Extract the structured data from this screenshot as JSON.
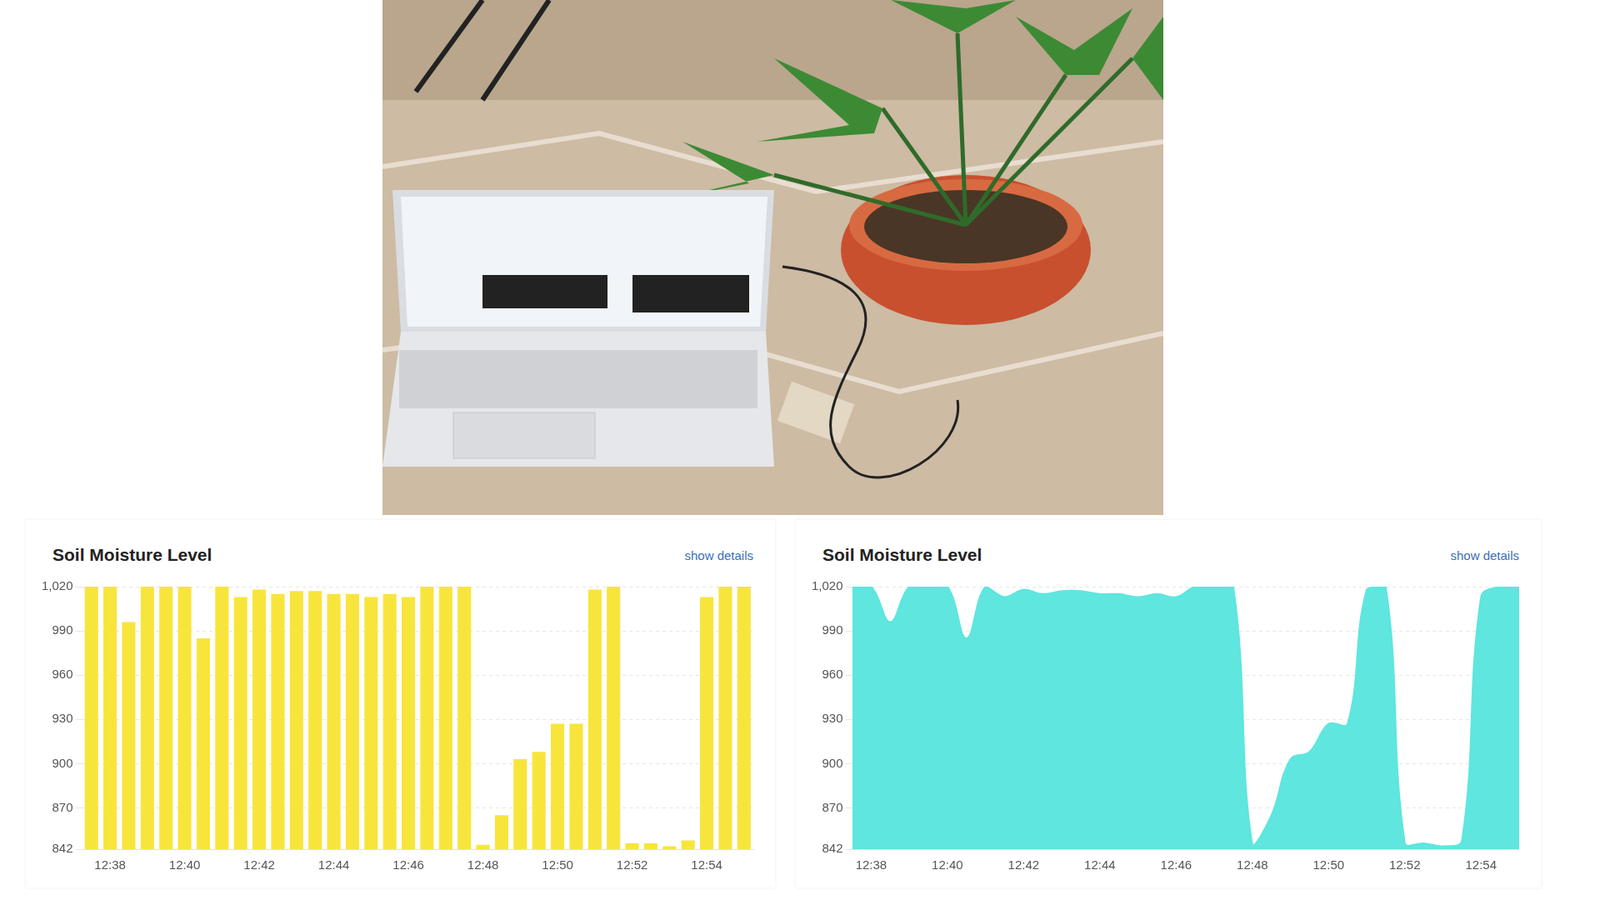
{
  "chart_data": [
    {
      "type": "bar",
      "title": "Soil Moisture Level",
      "annotation": "show details",
      "categories": [
        null,
        "12:38",
        null,
        null,
        null,
        "12:40",
        null,
        null,
        null,
        "12:42",
        null,
        null,
        null,
        "12:44",
        null,
        null,
        null,
        "12:46",
        null,
        null,
        null,
        "12:48",
        null,
        null,
        null,
        "12:50",
        null,
        null,
        null,
        "12:52",
        null,
        null,
        null,
        "12:54",
        null,
        null
      ],
      "values": [
        1020,
        1020,
        996,
        1020,
        1020,
        1020,
        985,
        1020,
        1013,
        1018,
        1015,
        1017,
        1017,
        1015,
        1015,
        1013,
        1015,
        1013,
        1020,
        1020,
        1020,
        845,
        865,
        903,
        908,
        927,
        927,
        1018,
        1020,
        846,
        846,
        844,
        848,
        1013,
        1020,
        1020
      ],
      "color": "#f8e53c",
      "ylim": [
        842,
        1020
      ],
      "yticks": [
        842,
        870,
        900,
        930,
        960,
        990,
        {
          "value": 1020,
          "label": "1,020"
        }
      ],
      "grid": true
    },
    {
      "type": "area",
      "title": "Soil Moisture Level",
      "annotation": "show details",
      "categories": [
        null,
        "12:38",
        null,
        null,
        null,
        "12:40",
        null,
        null,
        null,
        "12:42",
        null,
        null,
        null,
        "12:44",
        null,
        null,
        null,
        "12:46",
        null,
        null,
        null,
        "12:48",
        null,
        null,
        null,
        "12:50",
        null,
        null,
        null,
        "12:52",
        null,
        null,
        null,
        "12:54",
        null,
        null
      ],
      "values": [
        1020,
        1020,
        996,
        1020,
        1020,
        1020,
        985,
        1020,
        1013,
        1018,
        1015,
        1017,
        1017,
        1015,
        1015,
        1013,
        1015,
        1013,
        1020,
        1020,
        1020,
        845,
        865,
        903,
        908,
        927,
        927,
        1018,
        1020,
        846,
        846,
        844,
        848,
        1013,
        1020,
        1020
      ],
      "color": "#5ee6df",
      "ylim": [
        842,
        1020
      ],
      "yticks": [
        842,
        870,
        900,
        930,
        960,
        990,
        {
          "value": 1020,
          "label": "1,020"
        }
      ],
      "grid": true
    }
  ]
}
